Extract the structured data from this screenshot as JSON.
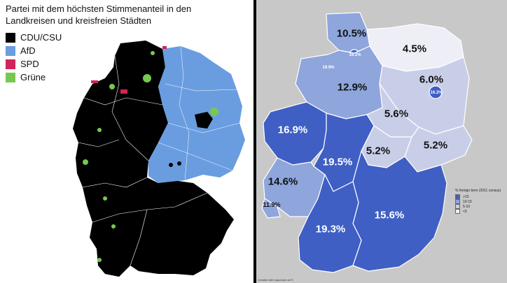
{
  "left_map": {
    "title": "Partei mit dem höchsten Stimmenanteil in den Landkreisen und kreisfreien Städten",
    "legend": [
      {
        "label": "CDU/CSU",
        "color": "#000000"
      },
      {
        "label": "AfD",
        "color": "#6a9de0"
      },
      {
        "label": "SPD",
        "color": "#d0245a"
      },
      {
        "label": "Grüne",
        "color": "#78c850"
      }
    ]
  },
  "right_map": {
    "legend_title": "% foreign born (2011 census)",
    "legend": [
      {
        "label": ">15",
        "color": "#3f5fc4"
      },
      {
        "label": "10-15",
        "color": "#8ea6dc"
      },
      {
        "label": "5-10",
        "color": "#c9cee8"
      },
      {
        "label": "<5",
        "color": "#eeeef7"
      }
    ],
    "regions": [
      {
        "value": "10.5%",
        "category": "10-15"
      },
      {
        "value": "16.1%",
        "category": ">15"
      },
      {
        "value": "19.9%",
        "category": ">15"
      },
      {
        "value": "4.5%",
        "category": "<5"
      },
      {
        "value": "12.9%",
        "category": "10-15"
      },
      {
        "value": "6.0%",
        "category": "5-10"
      },
      {
        "value": "16.2%",
        "category": ">15"
      },
      {
        "value": "5.6%",
        "category": "5-10"
      },
      {
        "value": "16.9%",
        "category": ">15"
      },
      {
        "value": "19.5%",
        "category": ">15"
      },
      {
        "value": "5.2%",
        "category": "5-10"
      },
      {
        "value": "5.2%",
        "category": "5-10"
      },
      {
        "value": "14.6%",
        "category": "10-15"
      },
      {
        "value": "11.9%",
        "category": "10-15"
      },
      {
        "value": "15.6%",
        "category": ">15"
      },
      {
        "value": "19.3%",
        "category": ">15"
      }
    ],
    "credit": "Created with mapchart.net ©"
  }
}
